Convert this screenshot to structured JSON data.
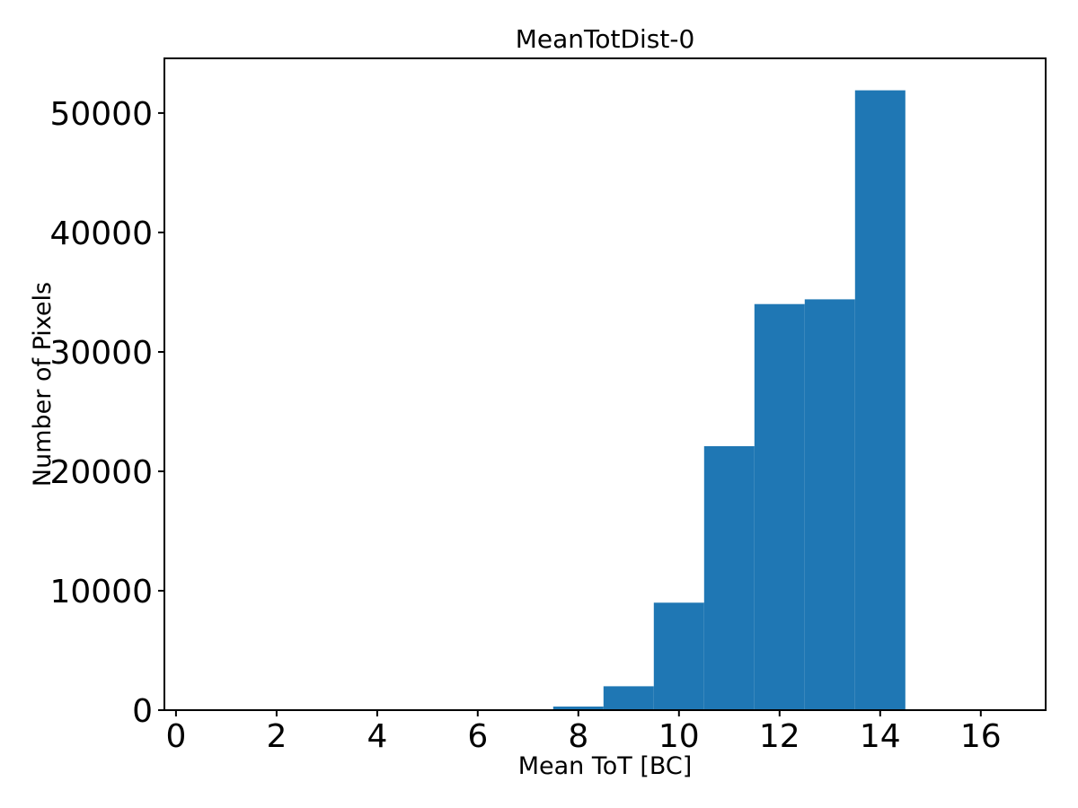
{
  "figure": {
    "background": "#ffffff"
  },
  "chart_data": {
    "type": "histogram",
    "title": "MeanTotDist-0",
    "xlabel": "Mean ToT [BC]",
    "ylabel": "Number of Pixels",
    "bar_color": "#1f77b4",
    "axis_color": "#000000",
    "bin_edges": [
      7.5,
      8.5,
      9.5,
      10.5,
      11.5,
      12.5,
      13.5,
      14.5
    ],
    "counts": [
      300,
      2000,
      9000,
      22100,
      34000,
      34400,
      51900
    ],
    "xlim": [
      -0.23,
      17.29
    ],
    "ylim": [
      0,
      54580
    ],
    "xticks": [
      0,
      2,
      4,
      6,
      8,
      10,
      12,
      14,
      16
    ],
    "yticks": [
      0,
      10000,
      20000,
      30000,
      40000,
      50000
    ],
    "grid": false,
    "legend": "none"
  }
}
